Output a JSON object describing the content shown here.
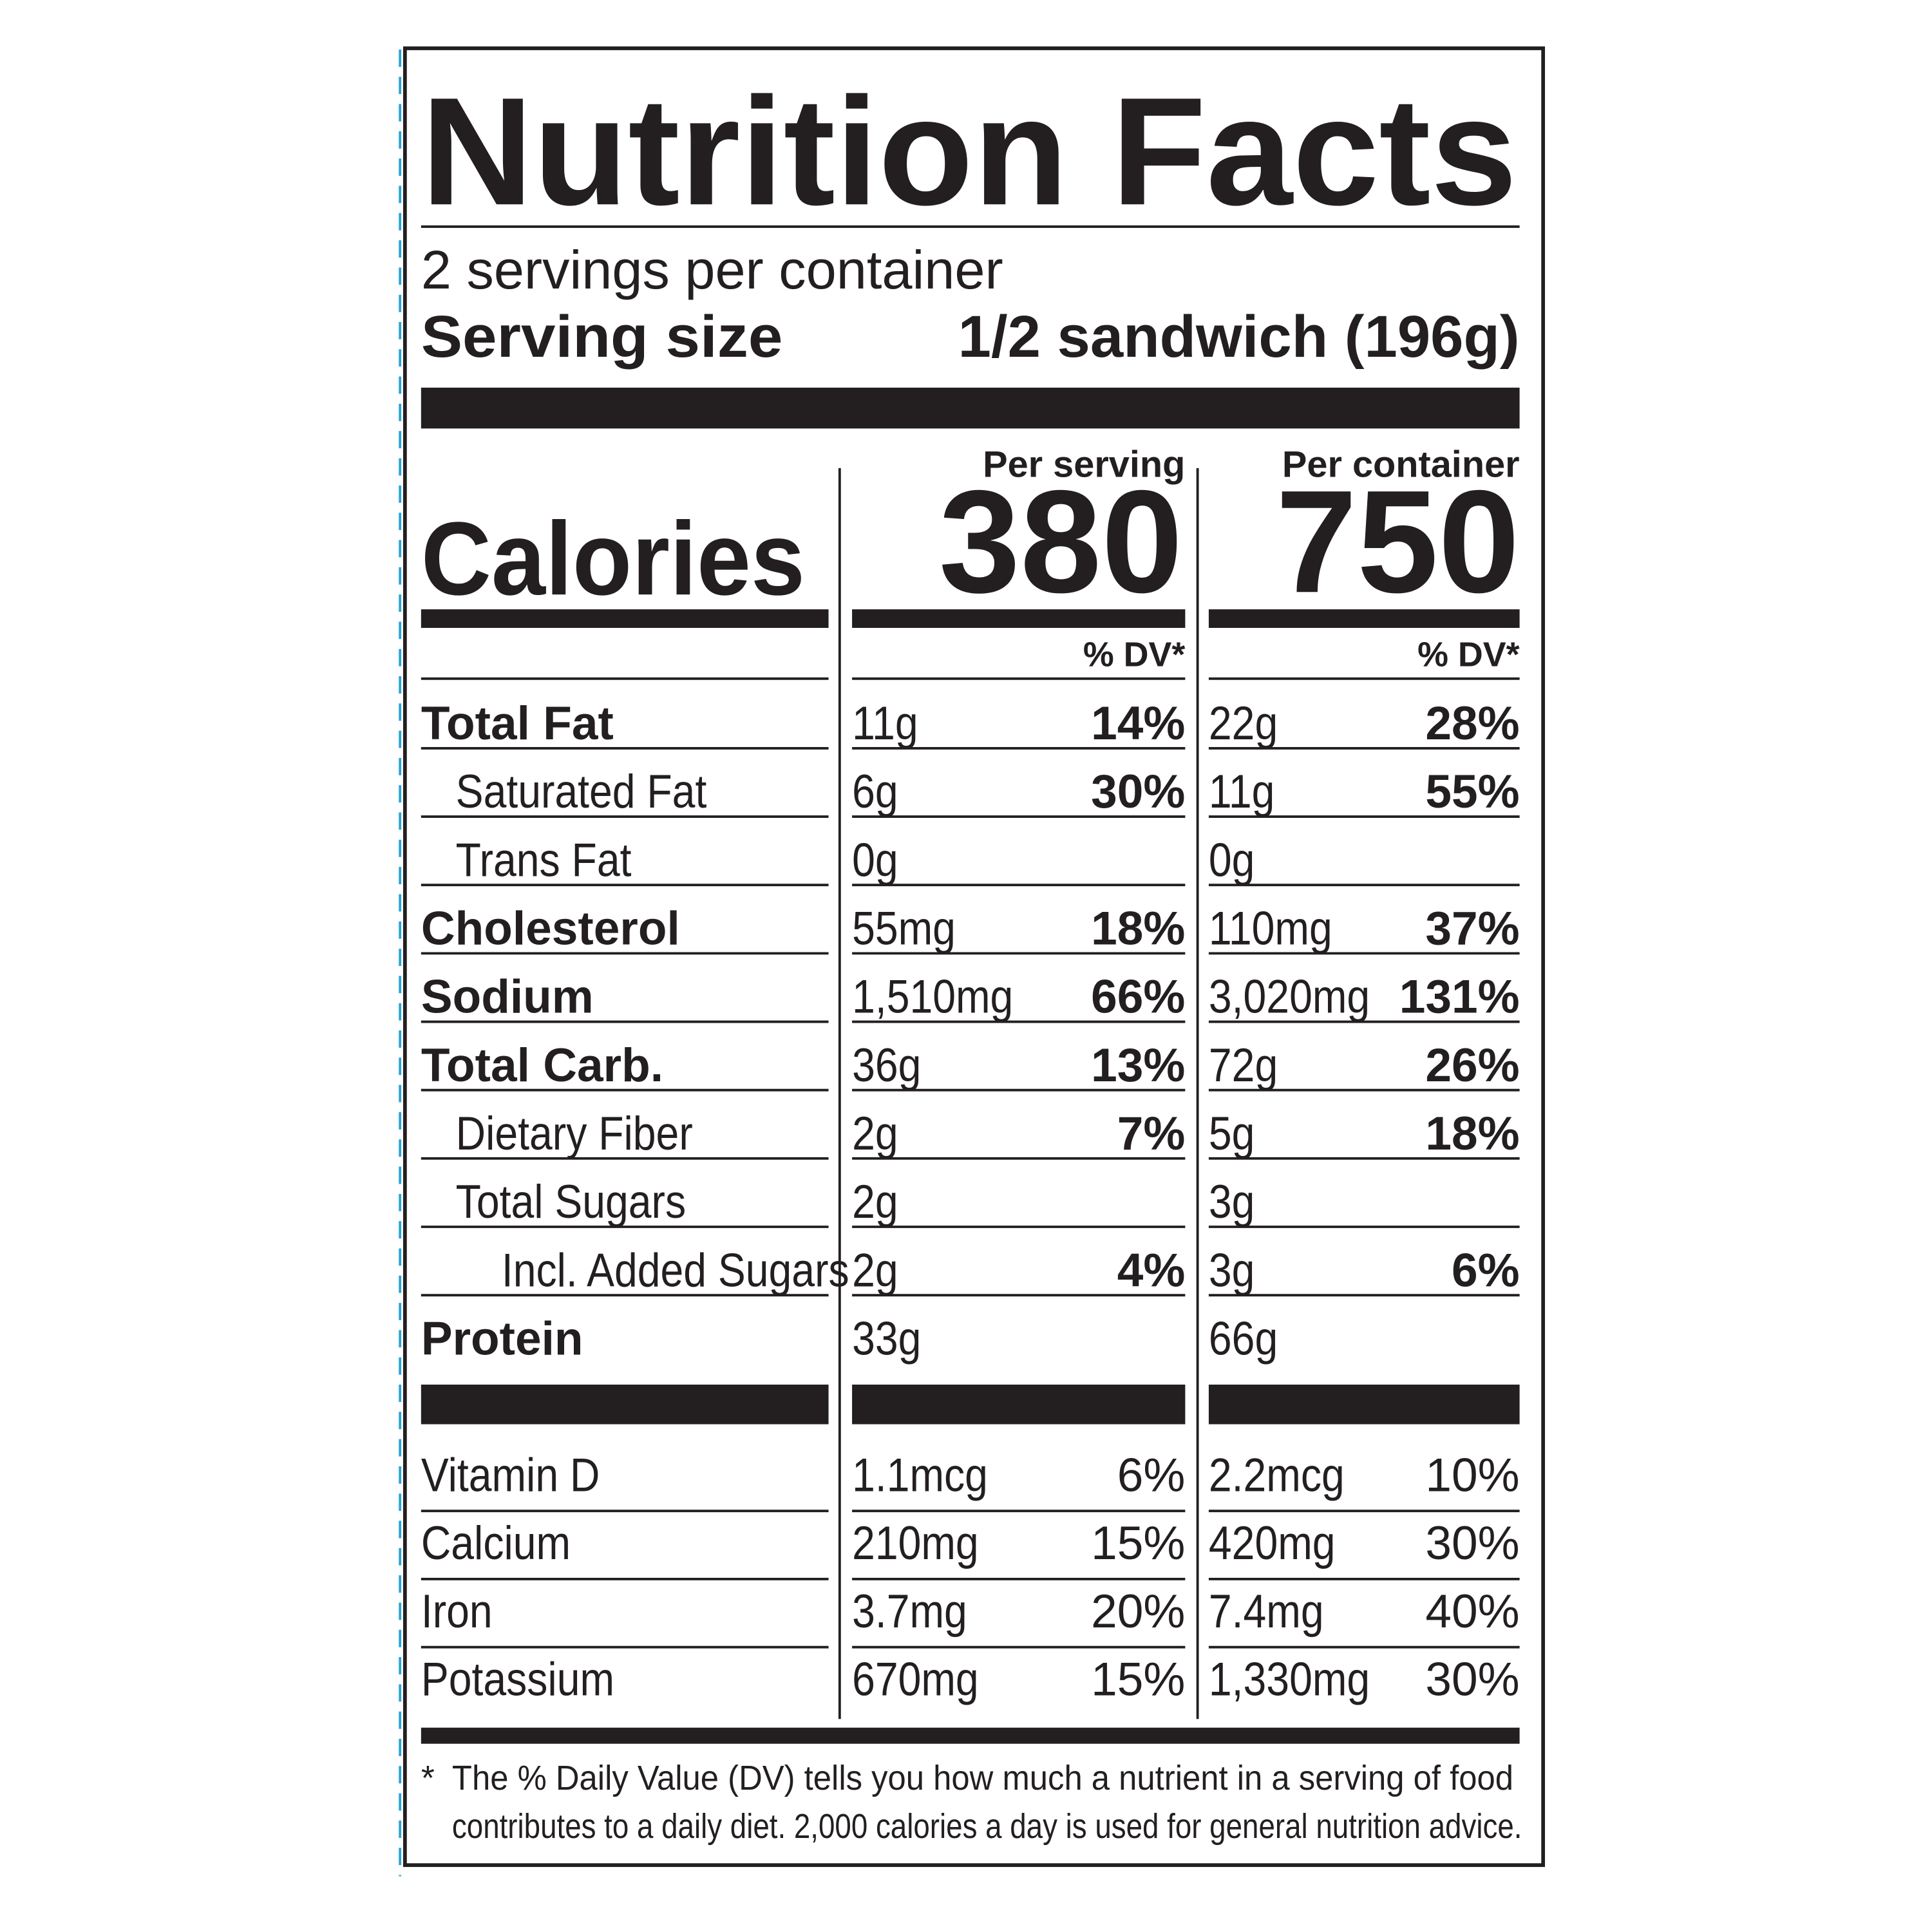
{
  "title": "Nutrition Facts",
  "servings": "2 servings per container",
  "serving_size": {
    "label": "Serving size",
    "value": "1/2 sandwich (196g)"
  },
  "columns": [
    "Per serving",
    "Per container"
  ],
  "calories": {
    "label": "Calories",
    "serving": "380",
    "container": "750"
  },
  "dv_headers": [
    "% DV*",
    "% DV*"
  ],
  "nutrients": [
    {
      "name": "Total Fat",
      "serving": {
        "amount": "11g",
        "dv": "14%"
      },
      "container": {
        "amount": "22g",
        "dv": "28%"
      }
    },
    {
      "name": "Saturated Fat",
      "serving": {
        "amount": "6g",
        "dv": "30%"
      },
      "container": {
        "amount": "11g",
        "dv": "55%"
      }
    },
    {
      "name": "Trans Fat",
      "serving": {
        "amount": "0g",
        "dv": null
      },
      "container": {
        "amount": "0g",
        "dv": null
      }
    },
    {
      "name": "Cholesterol",
      "serving": {
        "amount": "55mg",
        "dv": "18%"
      },
      "container": {
        "amount": "110mg",
        "dv": "37%"
      }
    },
    {
      "name": "Sodium",
      "serving": {
        "amount": "1,510mg",
        "dv": "66%"
      },
      "container": {
        "amount": "3,020mg",
        "dv": "131%"
      }
    },
    {
      "name": "Total Carb.",
      "serving": {
        "amount": "36g",
        "dv": "13%"
      },
      "container": {
        "amount": "72g",
        "dv": "26%"
      }
    },
    {
      "name": "Dietary Fiber",
      "serving": {
        "amount": "2g",
        "dv": "7%"
      },
      "container": {
        "amount": "5g",
        "dv": "18%"
      }
    },
    {
      "name": "Total Sugars",
      "serving": {
        "amount": "2g",
        "dv": null
      },
      "container": {
        "amount": "3g",
        "dv": null
      }
    },
    {
      "name": "Incl. Added Sugars",
      "serving": {
        "amount": "2g",
        "dv": "4%"
      },
      "container": {
        "amount": "3g",
        "dv": "6%"
      }
    },
    {
      "name": "Protein",
      "serving": {
        "amount": "33g",
        "dv": null
      },
      "container": {
        "amount": "66g",
        "dv": null
      }
    }
  ],
  "vitamins": [
    {
      "name": "Vitamin D",
      "serving": {
        "amount": "1.1mcg",
        "dv": "6%"
      },
      "container": {
        "amount": "2.2mcg",
        "dv": "10%"
      }
    },
    {
      "name": "Calcium",
      "serving": {
        "amount": "210mg",
        "dv": "15%"
      },
      "container": {
        "amount": "420mg",
        "dv": "30%"
      }
    },
    {
      "name": "Iron",
      "serving": {
        "amount": "3.7mg",
        "dv": "20%"
      },
      "container": {
        "amount": "7.4mg",
        "dv": "40%"
      }
    },
    {
      "name": "Potassium",
      "serving": {
        "amount": "670mg",
        "dv": "15%"
      },
      "container": {
        "amount": "1,330mg",
        "dv": "30%"
      }
    }
  ],
  "footnote": {
    "mark": "*",
    "lines": [
      "The % Daily Value (DV) tells you how much a nutrient in a serving of food",
      "contributes to a daily diet. 2,000 calories a day is used for general nutrition advice."
    ]
  }
}
